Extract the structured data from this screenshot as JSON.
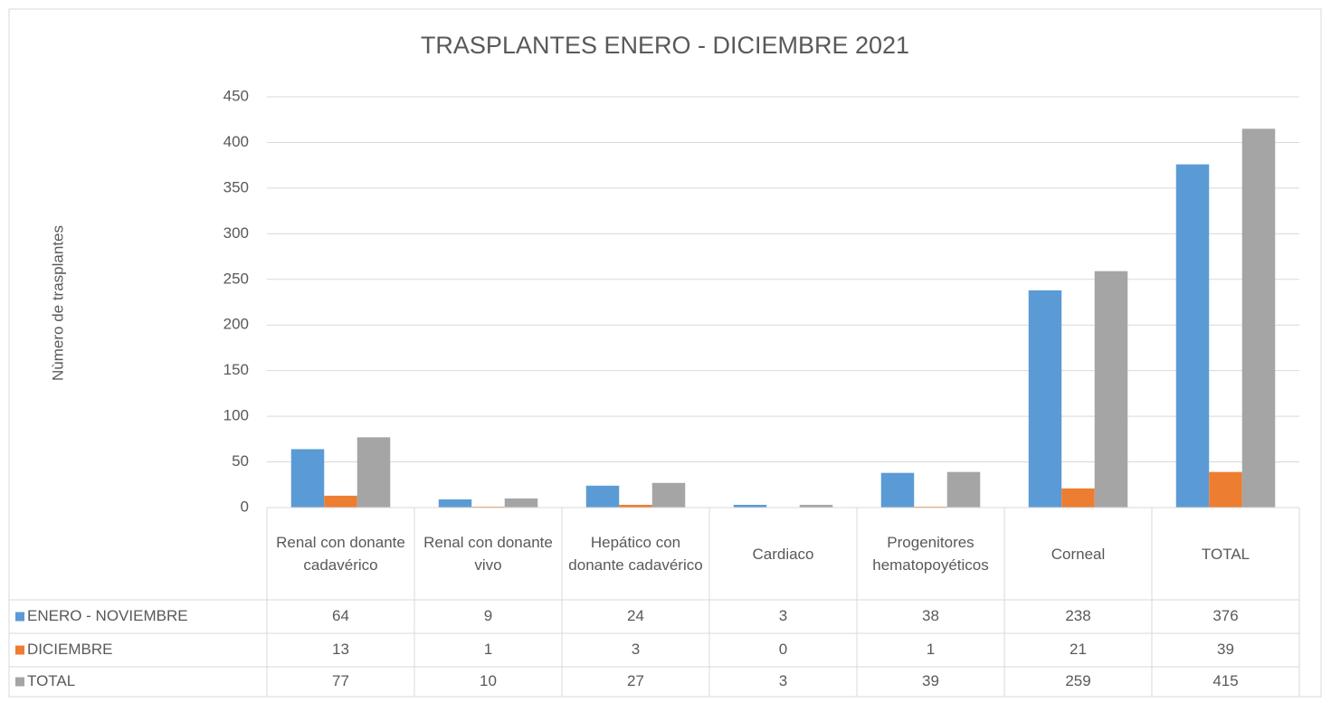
{
  "chart_data": {
    "type": "bar",
    "title": "TRASPLANTES ENERO - DICIEMBRE 2021",
    "y_axis_label": "Nùmero de trasplantes",
    "categories": [
      "Renal con donante cadavérico",
      "Renal con donante vivo",
      "Hepático con donante cadavérico",
      "Cardiaco",
      "Progenitores hematopoyéticos",
      "Corneal",
      "TOTAL"
    ],
    "series": [
      {
        "name": "ENERO - NOVIEMBRE",
        "color": "#5b9bd5",
        "values": [
          64,
          9,
          24,
          3,
          38,
          238,
          376
        ]
      },
      {
        "name": "DICIEMBRE",
        "color": "#ed7d31",
        "values": [
          13,
          1,
          3,
          0,
          1,
          21,
          39
        ]
      },
      {
        "name": "TOTAL",
        "color": "#a5a5a5",
        "values": [
          77,
          10,
          27,
          3,
          39,
          259,
          415
        ]
      }
    ],
    "ylim": [
      0,
      450
    ],
    "yticks": [
      0,
      50,
      100,
      150,
      200,
      250,
      300,
      350,
      400,
      450
    ],
    "grid": true
  }
}
